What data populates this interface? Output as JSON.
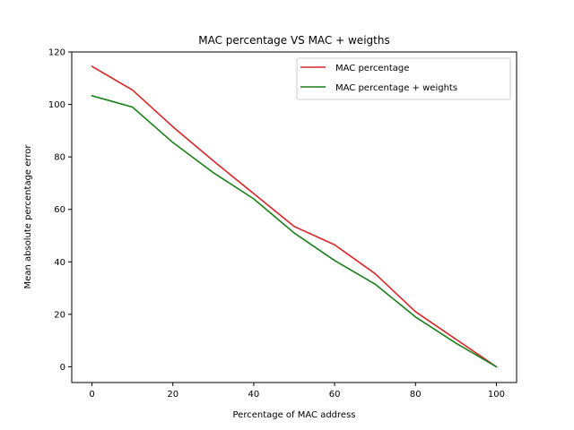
{
  "chart_data": {
    "type": "line",
    "title": "MAC percentage VS MAC + weigths",
    "xlabel": "Percentage of MAC address",
    "ylabel": "Mean absolute percentage error",
    "xlim": [
      -5,
      105
    ],
    "ylim": [
      -6,
      120
    ],
    "xticks": [
      0,
      20,
      40,
      60,
      80,
      100
    ],
    "yticks": [
      0,
      20,
      40,
      60,
      80,
      100,
      120
    ],
    "grid": false,
    "legend_position": "top-right",
    "x": [
      0,
      10,
      20,
      30,
      40,
      50,
      60,
      70,
      80,
      90,
      100
    ],
    "series": [
      {
        "name": "MAC percentage",
        "color": "#d62728",
        "values": [
          114.5,
          105.5,
          91.5,
          78.5,
          66.0,
          53.5,
          46.5,
          35.5,
          21.0,
          10.5,
          0.0
        ]
      },
      {
        "name": "MAC percentage + weights",
        "color": "#1a7f1a",
        "values": [
          103.3,
          99.0,
          85.5,
          74.0,
          64.0,
          51.0,
          40.5,
          31.5,
          19.0,
          9.0,
          0.0
        ]
      }
    ]
  }
}
